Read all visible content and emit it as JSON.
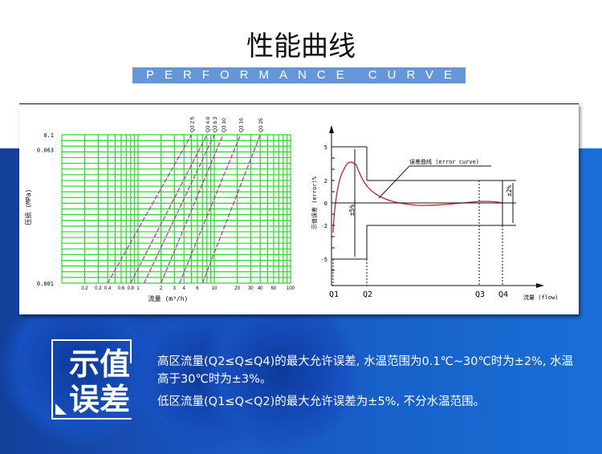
{
  "header": {
    "title": "性能曲线",
    "subtitle": "PERFORMANCE CURVE"
  },
  "chart_data": [
    {
      "type": "line",
      "xscale": "log",
      "yscale": "log",
      "xlabel": "流量 (m³/h)",
      "ylabel": "压损 (MPa)",
      "xlim": [
        0.1,
        100
      ],
      "ylim": [
        0.001,
        0.1
      ],
      "grid": true,
      "x_ticks": [
        "0.2",
        "0.3",
        "0.4",
        "0.6",
        "0.8",
        "1",
        "2",
        "3",
        "4",
        "6",
        "10",
        "20",
        "30",
        "40",
        "60",
        "100"
      ],
      "y_ticks": [
        "0.1",
        "0.063",
        "0.001"
      ],
      "series": [
        {
          "name": "Q3 2.5",
          "x": [
            0.4,
            5
          ],
          "y": [
            0.001,
            0.1
          ]
        },
        {
          "name": "Q3 4.0",
          "x": [
            0.8,
            8
          ],
          "y": [
            0.001,
            0.1
          ]
        },
        {
          "name": "Q3 6.3",
          "x": [
            1.2,
            10
          ],
          "y": [
            0.001,
            0.1
          ]
        },
        {
          "name": "Q3 10",
          "x": [
            2,
            13
          ],
          "y": [
            0.001,
            0.1
          ]
        },
        {
          "name": "Q3 16",
          "x": [
            3.5,
            22
          ],
          "y": [
            0.001,
            0.1
          ]
        },
        {
          "name": "Q3 25",
          "x": [
            7,
            40
          ],
          "y": [
            0.001,
            0.1
          ]
        }
      ],
      "colors": {
        "grid": "#22dd22",
        "lines": "#cc22cc"
      }
    },
    {
      "type": "line",
      "xlabel": "流量 (flow)",
      "ylabel": "示值误差 (error)%",
      "ylim": [
        -5,
        5
      ],
      "y_ticks": [
        "5",
        "2",
        "0",
        "-2",
        "-5"
      ],
      "x_ticks": [
        "Q1",
        "Q2",
        "Q3",
        "Q4"
      ],
      "annotations": [
        "误差曲线 (error curve)",
        "±5%",
        "±2%"
      ],
      "limits": {
        "low_zone": 5,
        "high_zone": 2
      },
      "colors": {
        "curve": "#cc2233"
      }
    }
  ],
  "info": {
    "heading_line1": "示值",
    "heading_line2": "误差",
    "para1": "高区流量(Q2≤Q≤Q4)的最大允许误差, 水温范围为0.1℃~30℃时为±2%, 水温高于30℃时为±3%。",
    "para2": "低区流量(Q1≤Q<Q2)的最大允许误差为±5%, 不分水温范围。"
  }
}
